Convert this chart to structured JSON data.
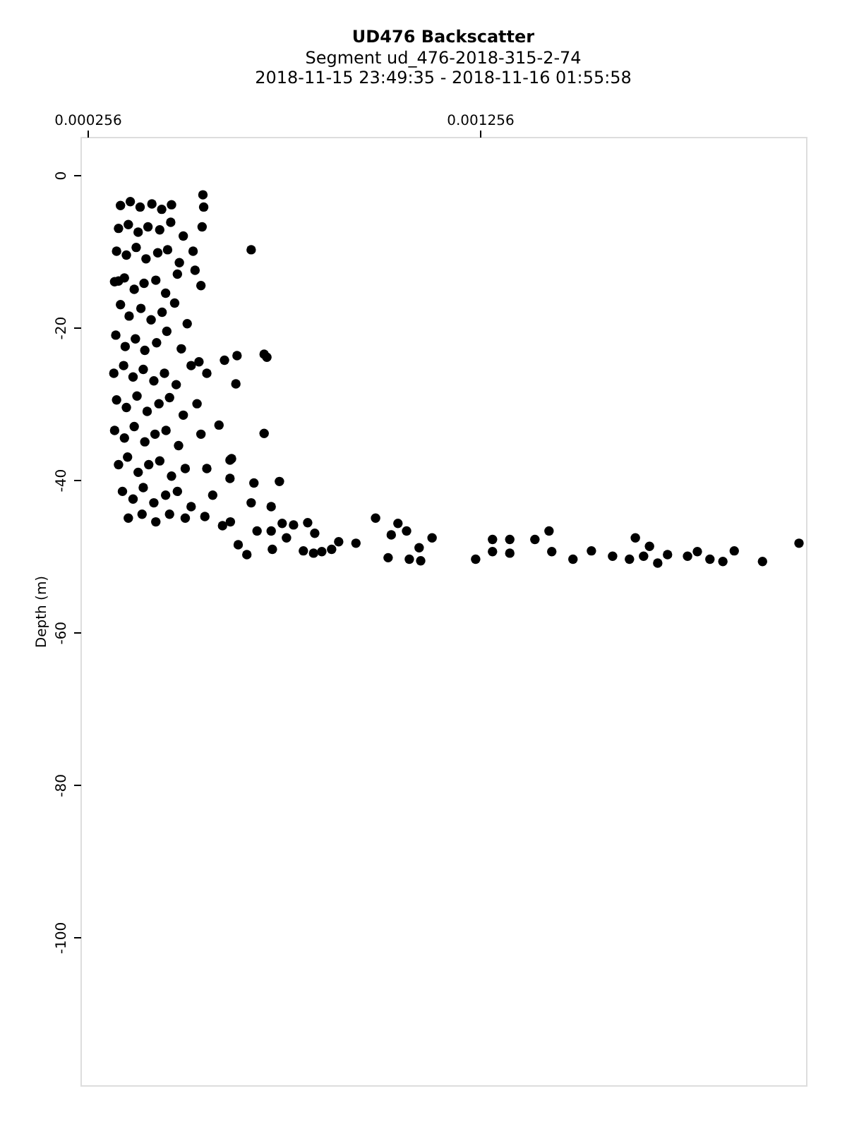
{
  "chart_data": {
    "type": "scatter",
    "title": "UD476 Backscatter",
    "subtitle": [
      "Segment ud_476-2018-315-2-74",
      "2018-11-15 23:49:35 - 2018-11-16 01:55:58"
    ],
    "ylabel": "Depth (m)",
    "xlim": [
      0.000238,
      0.002087
    ],
    "xticks": [
      0.000256,
      0.001256
    ],
    "ylim": [
      -119.4,
      5
    ],
    "yticks": [
      0,
      -20,
      -40,
      -60,
      -80,
      -100
    ],
    "grid": false,
    "legend": false,
    "marker": "circle",
    "series": [
      {
        "color": "#000000",
        "x": [
          0.00034,
          0.000365,
          0.00039,
          0.00042,
          0.000445,
          0.00047,
          0.00055,
          0.000552,
          0.000335,
          0.00036,
          0.000385,
          0.00041,
          0.00044,
          0.000468,
          0.0005,
          0.000548,
          0.00033,
          0.000355,
          0.00038,
          0.000405,
          0.000435,
          0.00046,
          0.00049,
          0.000525,
          0.000325,
          0.00035,
          0.000375,
          0.0004,
          0.00043,
          0.000455,
          0.000485,
          0.00053,
          0.000545,
          0.00034,
          0.000362,
          0.000392,
          0.000418,
          0.000446,
          0.000478,
          0.00051,
          0.000328,
          0.000352,
          0.000378,
          0.000402,
          0.000432,
          0.000458,
          0.000495,
          0.00054,
          0.000323,
          0.000348,
          0.000372,
          0.000398,
          0.000425,
          0.000452,
          0.000482,
          0.00052,
          0.00056,
          0.00033,
          0.000355,
          0.000382,
          0.000408,
          0.000438,
          0.000465,
          0.0005,
          0.000535,
          0.000325,
          0.00035,
          0.000375,
          0.000402,
          0.000428,
          0.000456,
          0.000488,
          0.000545,
          0.000335,
          0.000358,
          0.000385,
          0.000412,
          0.00044,
          0.00047,
          0.000505,
          0.00056,
          0.000345,
          0.000372,
          0.000398,
          0.000425,
          0.000455,
          0.000485,
          0.00052,
          0.000575,
          0.00036,
          0.000395,
          0.00043,
          0.000465,
          0.000505,
          0.000555,
          0.0006,
          0.00064,
          0.00062,
          0.000335,
          0.000673,
          0.000706,
          0.000713,
          0.000706,
          0.000745,
          0.000623,
          0.000619,
          0.000619,
          0.000591,
          0.000634,
          0.000637,
          0.000605,
          0.00068,
          0.000673,
          0.000724,
          0.000752,
          0.000781,
          0.000817,
          0.00099,
          0.001047,
          0.001069,
          0.00103,
          0.001134,
          0.001101,
          0.001022,
          0.001076,
          0.001105,
          0.001245,
          0.001288,
          0.001288,
          0.001332,
          0.001332,
          0.000896,
          0.00094,
          0.000878,
          0.000853,
          0.000832,
          0.000806,
          0.000835,
          0.000763,
          0.000727,
          0.000724,
          0.000662,
          0.000688,
          0.001396,
          0.001432,
          0.001439,
          0.001493,
          0.00154,
          0.001594,
          0.001637,
          0.001652,
          0.001688,
          0.001673,
          0.001709,
          0.001734,
          0.001785,
          0.00181,
          0.001842,
          0.001875,
          0.001904,
          0.001976,
          0.002069
        ],
        "values": [
          -4,
          -3.5,
          -4.2,
          -3.8,
          -4.5,
          -3.9,
          -2.6,
          -4.2,
          -7,
          -6.5,
          -7.5,
          -6.8,
          -7.2,
          -6.2,
          -8,
          -6.8,
          -10,
          -10.5,
          -9.5,
          -11,
          -10.2,
          -9.8,
          -11.5,
          -10,
          -14,
          -13.5,
          -15,
          -14.2,
          -13.8,
          -15.5,
          -13,
          -12.5,
          -14.5,
          -17,
          -18.5,
          -17.5,
          -19,
          -18,
          -16.8,
          -19.5,
          -21,
          -22.5,
          -21.5,
          -23,
          -22,
          -20.5,
          -22.8,
          -24.5,
          -26,
          -25,
          -26.5,
          -25.5,
          -27,
          -26,
          -27.5,
          -25,
          -26,
          -29.5,
          -30.5,
          -29,
          -31,
          -30,
          -29.2,
          -31.5,
          -30,
          -33.5,
          -34.5,
          -33,
          -35,
          -34,
          -33.5,
          -35.5,
          -34,
          -38,
          -37,
          -39,
          -38,
          -37.5,
          -39.5,
          -38.5,
          -38.5,
          -41.5,
          -42.5,
          -41,
          -43,
          -42,
          -41.5,
          -43.5,
          -42,
          -45,
          -44.5,
          -45.5,
          -44.5,
          -45,
          -44.8,
          -46,
          -48.5,
          -45.5,
          -13.9,
          -9.8,
          -23.5,
          -23.9,
          -33.9,
          -40.2,
          -37.2,
          -37.4,
          -39.8,
          -32.8,
          -27.4,
          -23.7,
          -24.3,
          -40.4,
          -43,
          -43.5,
          -45.7,
          -45.9,
          -45.6,
          -45,
          -45.7,
          -46.7,
          -47.2,
          -47.6,
          -48.9,
          -50.2,
          -50.4,
          -50.6,
          -50.4,
          -49.4,
          -47.8,
          -47.8,
          -49.6,
          -48.1,
          -48.3,
          -49.1,
          -49.4,
          -49.6,
          -49.3,
          -47,
          -47.6,
          -49.1,
          -46.7,
          -49.8,
          -46.7,
          -47.8,
          -46.7,
          -49.4,
          -50.4,
          -49.3,
          -50,
          -50.4,
          -47.6,
          -48.7,
          -50,
          -50.9,
          -49.8,
          -50,
          -49.4,
          -50.4,
          -50.7,
          -49.3,
          -50.7,
          -48.3
        ]
      }
    ]
  }
}
